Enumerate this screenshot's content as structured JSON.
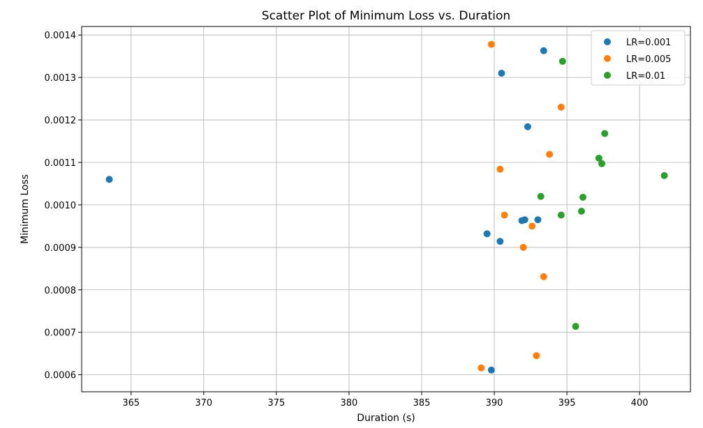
{
  "chart_data": {
    "type": "scatter",
    "title": "Scatter Plot of Minimum Loss vs. Duration",
    "xlabel": "Duration (s)",
    "ylabel": "Minimum Loss",
    "xlim": [
      361.6,
      403.5
    ],
    "ylim": [
      0.00056,
      0.00142
    ],
    "xticks": [
      365,
      370,
      375,
      380,
      385,
      390,
      395,
      400
    ],
    "yticks": [
      0.0006,
      0.0007,
      0.0008,
      0.0009,
      0.001,
      0.0011,
      0.0012,
      0.0013,
      0.0014
    ],
    "ytick_labels": [
      "0.0006",
      "0.0007",
      "0.0008",
      "0.0009",
      "0.0010",
      "0.0011",
      "0.0012",
      "0.0013",
      "0.0014"
    ],
    "grid": true,
    "legend_position": "top-right",
    "series": [
      {
        "name": "LR=0.001",
        "color": "#1f77b4",
        "points": [
          [
            363.5,
            0.00106
          ],
          [
            389.5,
            0.000932
          ],
          [
            389.8,
            0.000611
          ],
          [
            390.4,
            0.000914
          ],
          [
            390.5,
            0.00131
          ],
          [
            391.9,
            0.000963
          ],
          [
            392.1,
            0.000965
          ],
          [
            392.3,
            0.001184
          ],
          [
            393.0,
            0.000965
          ],
          [
            393.4,
            0.001363
          ]
        ]
      },
      {
        "name": "LR=0.005",
        "color": "#ff7f0e",
        "points": [
          [
            389.1,
            0.000616
          ],
          [
            389.8,
            0.001378
          ],
          [
            390.4,
            0.001084
          ],
          [
            390.7,
            0.000976
          ],
          [
            392.0,
            0.0009
          ],
          [
            392.6,
            0.00095
          ],
          [
            392.9,
            0.000645
          ],
          [
            393.4,
            0.000831
          ],
          [
            393.8,
            0.001119
          ],
          [
            394.6,
            0.00123
          ]
        ]
      },
      {
        "name": "LR=0.01",
        "color": "#2ca02c",
        "points": [
          [
            393.2,
            0.00102
          ],
          [
            394.6,
            0.000976
          ],
          [
            394.7,
            0.001338
          ],
          [
            395.6,
            0.000714
          ],
          [
            396.0,
            0.000985
          ],
          [
            396.1,
            0.001018
          ],
          [
            397.2,
            0.00111
          ],
          [
            397.4,
            0.001097
          ],
          [
            397.6,
            0.001168
          ],
          [
            401.7,
            0.001069
          ]
        ]
      }
    ]
  }
}
